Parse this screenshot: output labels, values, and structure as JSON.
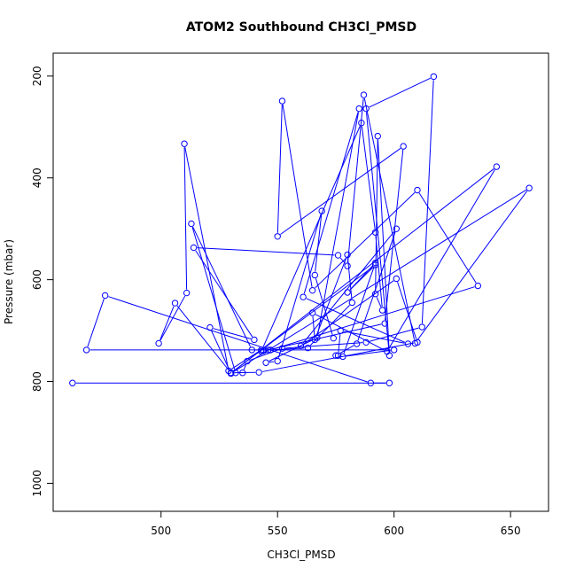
{
  "chart_data": {
    "type": "line",
    "title": "ATOM2 Southbound CH3Cl_PMSD",
    "xlabel": "CH3Cl_PMSD",
    "ylabel": "Pressure (mbar)",
    "xlim": [
      453.7,
      666.3
    ],
    "ylim": [
      1055,
      155
    ],
    "y_axis_reversed": true,
    "x_ticks": [
      500,
      550,
      600,
      650
    ],
    "x_tick_labels": [
      "500",
      "550",
      "600",
      "650"
    ],
    "y_ticks": [
      200,
      400,
      600,
      800,
      1000
    ],
    "y_tick_labels": [
      "200",
      "400",
      "600",
      "800",
      "1000"
    ],
    "grid": false,
    "legend": "none",
    "series_color": "#0000ff",
    "marker": "open-circle",
    "series": [
      {
        "x": [
          462,
          598,
          590,
          476,
          468,
          600,
          578,
          592,
          580,
          592,
          530,
          506,
          499,
          511,
          510,
          529,
          543,
          539,
          513,
          532,
          535,
          537,
          552,
          588,
          612,
          617,
          588,
          598,
          593,
          592,
          595,
          592,
          586,
          543,
          544,
          546,
          596,
          604,
          550,
          552,
          565,
          610,
          636,
          547,
          563,
          582,
          580,
          566,
          565,
          597,
          644,
          530,
          521,
          540,
          514,
          576,
          580,
          587,
          609,
          658,
          530,
          530,
          542,
          610,
          601,
          560,
          601,
          584,
          575,
          576,
          577,
          606,
          561,
          585,
          567,
          545,
          550,
          569,
          566,
          574
        ],
        "y": [
          803,
          803,
          803,
          631,
          738,
          738,
          751,
          567,
          625,
          571,
          783,
          646,
          725,
          626,
          333,
          779,
          738,
          738,
          490,
          783,
          783,
          760,
          735,
          723,
          693,
          201,
          264,
          749,
          318,
          628,
          660,
          507,
          292,
          741,
          740,
          738,
          686,
          338,
          515,
          249,
          621,
          424,
          612,
          738,
          734,
          645,
          551,
          718,
          665,
          741,
          378,
          784,
          694,
          718,
          537,
          552,
          573,
          237,
          725,
          420,
          784,
          783,
          782,
          723,
          598,
          730,
          500,
          726,
          749,
          749,
          700,
          726,
          634,
          264,
          714,
          763,
          760,
          465,
          591,
          715
        ]
      }
    ]
  }
}
